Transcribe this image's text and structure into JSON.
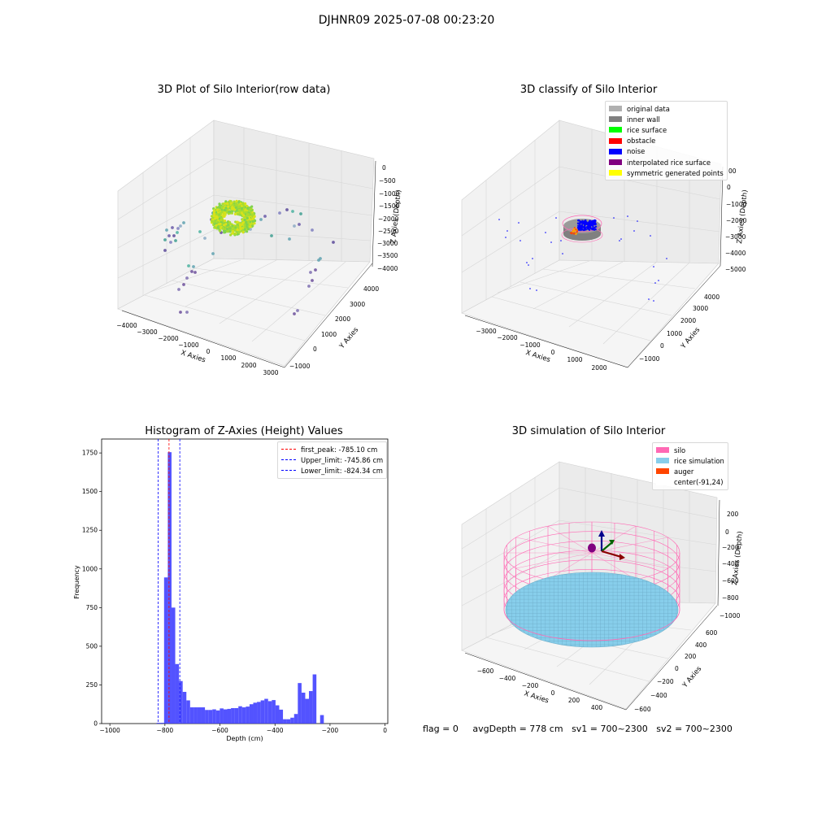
{
  "suptitle": "DJHNR09 2025-07-08 00:23:20",
  "panel1": {
    "title": "3D Plot of Silo Interior(row data)",
    "xlabel": "X Axies",
    "ylabel": "Y Axies",
    "zlabel": "Z Axies (Depth)",
    "xticks": [
      "−4000",
      "−3000",
      "−2000",
      "−1000",
      "0",
      "1000",
      "2000",
      "3000"
    ],
    "yticks": [
      "−1000",
      "0",
      "1000",
      "2000",
      "3000",
      "4000"
    ],
    "zticks": [
      "0",
      "−500",
      "−1000",
      "−1500",
      "−2000",
      "−2500",
      "−3000",
      "−3500",
      "−4000"
    ]
  },
  "panel2": {
    "title": "3D classify of Silo Interior",
    "xlabel": "X Axies",
    "ylabel": "Y Axies",
    "zlabel": "Z Axies (Depth)",
    "xticks": [
      "−3000",
      "−2000",
      "−1000",
      "0",
      "1000",
      "2000"
    ],
    "yticks": [
      "−1000",
      "0",
      "1000",
      "2000",
      "3000",
      "4000"
    ],
    "zticks": [
      "0",
      "−1000",
      "−2000",
      "−3000",
      "−4000",
      "−5000"
    ],
    "legend": [
      {
        "label": "original data",
        "color": "#b0b0b0"
      },
      {
        "label": "inner wall",
        "color": "#808080"
      },
      {
        "label": "rice surface",
        "color": "#00ff00"
      },
      {
        "label": "obstacle",
        "color": "#ff0000"
      },
      {
        "label": "noise",
        "color": "#0000ff"
      },
      {
        "label": "interpolated rice surface",
        "color": "#800080"
      },
      {
        "label": "symmetric generated points",
        "color": "#ffff00"
      }
    ],
    "extra_tick": "00"
  },
  "panel3": {
    "title": "Histogram of Z-Axies (Height) Values",
    "xlabel": "Depth (cm)",
    "ylabel": "Frequency",
    "legend": [
      {
        "label": "first_peak: -785.10 cm",
        "color": "#ff0000"
      },
      {
        "label": "Upper_limit: -745.86 cm",
        "color": "#0000ff"
      },
      {
        "label": "Lower_limit: -824.34 cm",
        "color": "#0000ff"
      }
    ]
  },
  "panel4": {
    "title": "3D simulation of Silo Interior",
    "xlabel": "X Axies",
    "ylabel": "Y Axies",
    "zlabel": "Z Axies (Depth)",
    "xticks": [
      "−600",
      "−400",
      "−200",
      "0",
      "200",
      "400"
    ],
    "yticks": [
      "−600",
      "−400",
      "−200",
      "0",
      "200",
      "400",
      "600"
    ],
    "zticks": [
      "200",
      "0",
      "−200",
      "−400",
      "−600",
      "−800",
      "−1000"
    ],
    "legend": [
      {
        "label": "silo",
        "color": "#ff69b4"
      },
      {
        "label": "rice simulation",
        "color": "#87ceeb"
      },
      {
        "label": "auger",
        "color": "#ff4500"
      },
      {
        "label": "center(-91,24)",
        "color": "#ffffff"
      }
    ]
  },
  "footer": {
    "flag": "flag = 0",
    "avg": "avgDepth = 778 cm",
    "sv1": "sv1 = 700~2300",
    "sv2": "sv2 = 700~2300"
  },
  "chart_data": [
    {
      "type": "scatter",
      "title": "3D Plot of Silo Interior(row data)",
      "xlabel": "X Axies",
      "ylabel": "Y Axies",
      "zlabel": "Z Axies (Depth)",
      "xlim": [
        -4000,
        3000
      ],
      "ylim": [
        -1000,
        4000
      ],
      "zlim": [
        -4000,
        0
      ]
    },
    {
      "type": "scatter",
      "title": "3D classify of Silo Interior",
      "xlim": [
        -3000,
        2000
      ],
      "ylim": [
        -1000,
        4000
      ],
      "zlim": [
        -5000,
        0
      ],
      "series": [
        {
          "name": "original data"
        },
        {
          "name": "inner wall"
        },
        {
          "name": "rice surface"
        },
        {
          "name": "obstacle"
        },
        {
          "name": "noise"
        },
        {
          "name": "interpolated rice surface"
        },
        {
          "name": "symmetric generated points"
        }
      ]
    },
    {
      "type": "bar",
      "title": "Histogram of Z-Axies (Height) Values",
      "xlabel": "Depth (cm)",
      "ylabel": "Frequency",
      "xlim": [
        -1030,
        10
      ],
      "ylim": [
        0,
        1840
      ],
      "bin_width": 13.5,
      "bins": [
        {
          "x": -830,
          "v": 5
        },
        {
          "x": -816.5,
          "v": 5
        },
        {
          "x": -803,
          "v": 945
        },
        {
          "x": -789.5,
          "v": 1755
        },
        {
          "x": -776,
          "v": 750
        },
        {
          "x": -762.5,
          "v": 385
        },
        {
          "x": -749,
          "v": 275
        },
        {
          "x": -735.5,
          "v": 205
        },
        {
          "x": -722,
          "v": 150
        },
        {
          "x": -708.5,
          "v": 105
        },
        {
          "x": -695,
          "v": 105
        },
        {
          "x": -681.5,
          "v": 105
        },
        {
          "x": -668,
          "v": 105
        },
        {
          "x": -654.5,
          "v": 88
        },
        {
          "x": -641,
          "v": 88
        },
        {
          "x": -627.5,
          "v": 92
        },
        {
          "x": -614,
          "v": 85
        },
        {
          "x": -600.5,
          "v": 98
        },
        {
          "x": -587,
          "v": 92
        },
        {
          "x": -573.5,
          "v": 95
        },
        {
          "x": -560,
          "v": 100
        },
        {
          "x": -546.5,
          "v": 100
        },
        {
          "x": -533,
          "v": 112
        },
        {
          "x": -519.5,
          "v": 105
        },
        {
          "x": -506,
          "v": 110
        },
        {
          "x": -492.5,
          "v": 125
        },
        {
          "x": -479,
          "v": 135
        },
        {
          "x": -465.5,
          "v": 140
        },
        {
          "x": -452,
          "v": 150
        },
        {
          "x": -438.5,
          "v": 160
        },
        {
          "x": -425,
          "v": 145
        },
        {
          "x": -411.5,
          "v": 152
        },
        {
          "x": -398,
          "v": 118
        },
        {
          "x": -384.5,
          "v": 90
        },
        {
          "x": -371,
          "v": 28
        },
        {
          "x": -357.5,
          "v": 28
        },
        {
          "x": -344,
          "v": 38
        },
        {
          "x": -330.5,
          "v": 62
        },
        {
          "x": -317,
          "v": 262
        },
        {
          "x": -303.5,
          "v": 200
        },
        {
          "x": -290,
          "v": 160
        },
        {
          "x": -276.5,
          "v": 210
        },
        {
          "x": -263,
          "v": 318
        },
        {
          "x": -249.5,
          "v": 0
        },
        {
          "x": -236,
          "v": 55
        }
      ],
      "lines": [
        {
          "name": "first_peak",
          "x": -785.1
        },
        {
          "name": "Upper_limit",
          "x": -745.86
        },
        {
          "name": "Lower_limit",
          "x": -824.34
        }
      ],
      "yticks": [
        0,
        250,
        500,
        750,
        1000,
        1250,
        1500,
        1750
      ],
      "xticks": [
        -1000,
        -800,
        -600,
        -400,
        -200,
        0
      ]
    },
    {
      "type": "scatter",
      "title": "3D simulation of Silo Interior",
      "xlim": [
        -700,
        500
      ],
      "ylim": [
        -700,
        700
      ],
      "zlim": [
        -1000,
        300
      ],
      "center": [
        -91,
        24
      ]
    }
  ]
}
